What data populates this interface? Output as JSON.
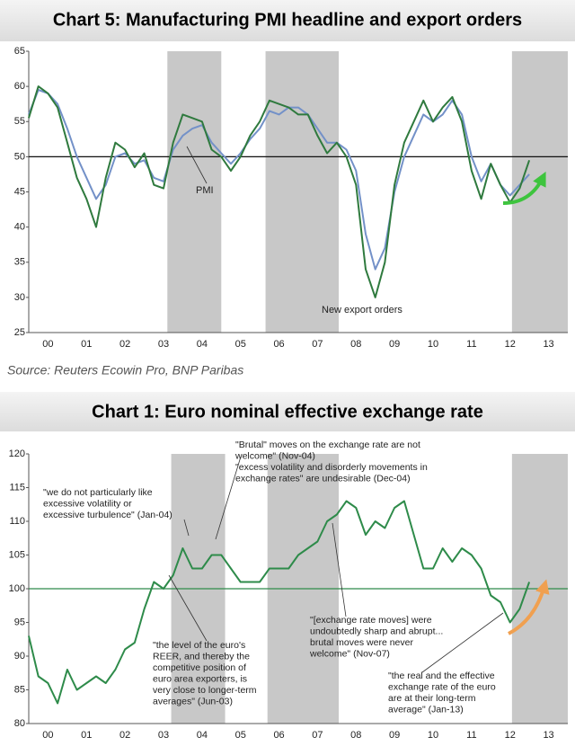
{
  "chart_data": [
    {
      "type": "line",
      "title": "Chart 5: Manufacturing PMI headline and export orders",
      "source": "Source: Reuters Ecowin Pro, BNP Paribas",
      "x": [
        0,
        0.25,
        0.5,
        0.75,
        1,
        1.25,
        1.5,
        1.75,
        2,
        2.25,
        2.5,
        2.75,
        3,
        3.25,
        3.5,
        3.75,
        4,
        4.25,
        4.5,
        4.75,
        5,
        5.25,
        5.5,
        5.75,
        6,
        6.25,
        6.5,
        6.75,
        7,
        7.25,
        7.5,
        7.75,
        8,
        8.25,
        8.5,
        8.75,
        9,
        9.25,
        9.5,
        9.75,
        10,
        10.25,
        10.5,
        10.75,
        11,
        11.25,
        11.5,
        11.75,
        12,
        12.25,
        12.5,
        12.75,
        13
      ],
      "series": [
        {
          "name": "PMI",
          "color": "#7391c8",
          "values": [
            56,
            59.5,
            59,
            57.5,
            54,
            50,
            47,
            44,
            46,
            50,
            50.5,
            49,
            49.5,
            47,
            46.5,
            51,
            53,
            54,
            54.5,
            52,
            50.5,
            49,
            50.5,
            52.5,
            54,
            56.5,
            56,
            57,
            57,
            56,
            54,
            52,
            52,
            51,
            48,
            39,
            34,
            37,
            45,
            50,
            53,
            56,
            55,
            56,
            58,
            56,
            50,
            46.5,
            49,
            46,
            44.5,
            46,
            47.5
          ]
        },
        {
          "name": "New export orders",
          "color": "#2f7a3e",
          "values": [
            55.5,
            60,
            59,
            57,
            52,
            47,
            44,
            40,
            47,
            52,
            51,
            48.5,
            50.5,
            46,
            45.5,
            52,
            56,
            55.5,
            55,
            51,
            50,
            48,
            50,
            53,
            55,
            58,
            57.5,
            57,
            56,
            56,
            53,
            50.5,
            52,
            50,
            46,
            34,
            30,
            35,
            46,
            52,
            55,
            58,
            55,
            57,
            58.5,
            55,
            48,
            44,
            49,
            46,
            43.5,
            45.5,
            49.5
          ]
        }
      ],
      "xlim": [
        0,
        14
      ],
      "xticks": [
        {
          "value": 0.5,
          "label": "00"
        },
        {
          "value": 1.5,
          "label": "01"
        },
        {
          "value": 2.5,
          "label": "02"
        },
        {
          "value": 3.5,
          "label": "03"
        },
        {
          "value": 4.5,
          "label": "04"
        },
        {
          "value": 5.5,
          "label": "05"
        },
        {
          "value": 6.5,
          "label": "06"
        },
        {
          "value": 7.5,
          "label": "07"
        },
        {
          "value": 8.5,
          "label": "08"
        },
        {
          "value": 9.5,
          "label": "09"
        },
        {
          "value": 10.5,
          "label": "10"
        },
        {
          "value": 11.5,
          "label": "11"
        },
        {
          "value": 12.5,
          "label": "12"
        },
        {
          "value": 13.5,
          "label": "13"
        }
      ],
      "ylim": [
        25,
        65
      ],
      "yticks": [
        25,
        30,
        35,
        40,
        45,
        50,
        55,
        60,
        65
      ],
      "reference_line": 50,
      "shaded": [
        [
          3.6,
          5.0
        ],
        [
          6.15,
          8.05
        ],
        [
          12.55,
          14
        ]
      ]
    },
    {
      "type": "line",
      "title": "Chart 1: Euro nominal effective exchange rate",
      "x": [
        0,
        0.25,
        0.5,
        0.75,
        1,
        1.25,
        1.5,
        1.75,
        2,
        2.25,
        2.5,
        2.75,
        3,
        3.25,
        3.5,
        3.75,
        4,
        4.25,
        4.5,
        4.75,
        5,
        5.25,
        5.5,
        5.75,
        6,
        6.25,
        6.5,
        6.75,
        7,
        7.25,
        7.5,
        7.75,
        8,
        8.25,
        8.5,
        8.75,
        9,
        9.25,
        9.5,
        9.75,
        10,
        10.25,
        10.5,
        10.75,
        11,
        11.25,
        11.5,
        11.75,
        12,
        12.25,
        12.5,
        12.75,
        13
      ],
      "values": [
        93,
        87,
        86,
        83,
        88,
        85,
        86,
        87,
        86,
        88,
        91,
        92,
        97,
        101,
        100,
        102,
        106,
        103,
        103,
        105,
        105,
        103,
        101,
        101,
        101,
        103,
        103,
        103,
        105,
        106,
        107,
        110,
        111,
        113,
        112,
        108,
        110,
        109,
        112,
        113,
        108,
        103,
        103,
        106,
        104,
        106,
        105,
        103,
        99,
        98,
        95,
        97,
        101
      ],
      "color": "#2e8b4a",
      "xlim": [
        0,
        14
      ],
      "xticks": [
        {
          "value": 0.5,
          "label": "00"
        },
        {
          "value": 1.5,
          "label": "01"
        },
        {
          "value": 2.5,
          "label": "02"
        },
        {
          "value": 3.5,
          "label": "03"
        },
        {
          "value": 4.5,
          "label": "04"
        },
        {
          "value": 5.5,
          "label": "05"
        },
        {
          "value": 6.5,
          "label": "06"
        },
        {
          "value": 7.5,
          "label": "07"
        },
        {
          "value": 8.5,
          "label": "08"
        },
        {
          "value": 9.5,
          "label": "09"
        },
        {
          "value": 10.5,
          "label": "10"
        },
        {
          "value": 11.5,
          "label": "11"
        },
        {
          "value": 12.5,
          "label": "12"
        },
        {
          "value": 13.5,
          "label": "13"
        }
      ],
      "ylim": [
        80,
        120
      ],
      "yticks": [
        80,
        85,
        90,
        95,
        100,
        105,
        110,
        115,
        120
      ],
      "reference_line": 100,
      "shaded": [
        [
          3.7,
          5.1
        ],
        [
          6.2,
          8.05
        ],
        [
          12.55,
          14
        ]
      ],
      "annotations": [
        [
          "\"Brutal\" moves on the exchange rate are not",
          "welcome\" (Nov-04)",
          "\"excess volatility and disorderly movements in",
          "exchange rates\" are undesirable (Dec-04)"
        ],
        [
          "\"we do not particularly like",
          "excessive volatility or",
          "excessive turbulence\" (Jan-04)"
        ],
        [
          "\"the level of the euro's",
          "REER, and thereby the",
          "competitive position of",
          "euro area exporters, is",
          "very close to longer-term",
          "averages\" (Jun-03)"
        ],
        [
          "\"[exchange rate moves] were",
          "undoubtedly sharp and abrupt...",
          "brutal moves were never",
          "welcome\" (Nov-07)"
        ],
        [
          "\"the real and the effective",
          "exchange rate of the euro",
          "are at their long-term",
          "average\" (Jan-13)"
        ]
      ]
    }
  ]
}
